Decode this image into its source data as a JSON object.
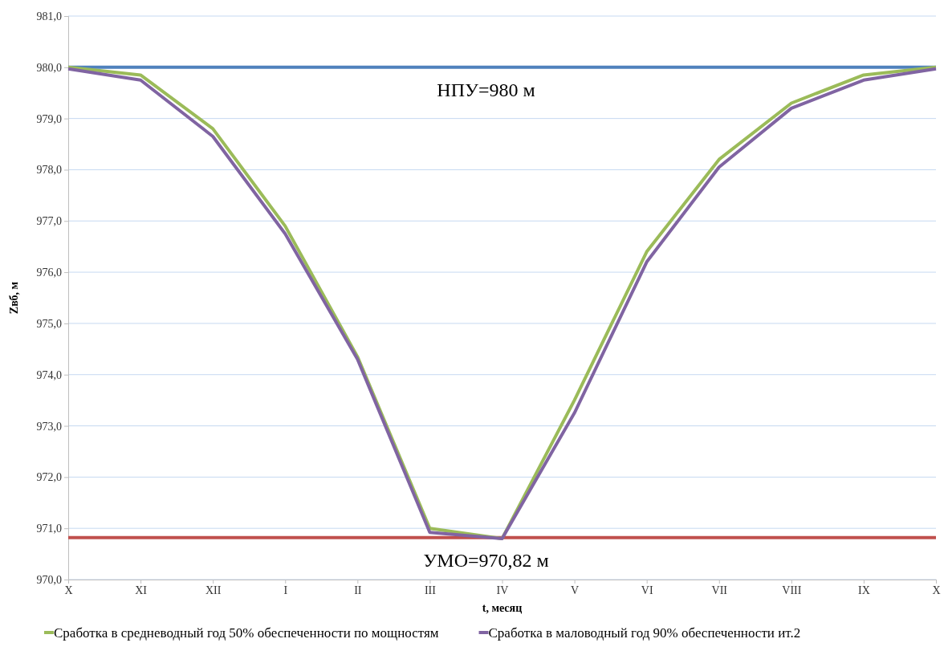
{
  "chart_data": {
    "type": "line",
    "xlabel": "t, месяц",
    "ylabel": "Zвб, м",
    "categories": [
      "X",
      "XI",
      "XII",
      "I",
      "II",
      "III",
      "IV",
      "V",
      "VI",
      "VII",
      "VIII",
      "IX",
      "X"
    ],
    "series": [
      {
        "name": "Сработка в средневодный год 50% обеспеченности по мощностям",
        "color": "#9bbb59",
        "values": [
          980.0,
          979.85,
          978.8,
          976.9,
          974.35,
          971.0,
          970.8,
          973.5,
          976.4,
          978.2,
          979.3,
          979.85,
          980.0
        ]
      },
      {
        "name": "Сработка в маловодный год 90% обеспеченности ит.2",
        "color": "#8064a2",
        "values": [
          979.97,
          979.75,
          978.65,
          976.75,
          974.3,
          970.92,
          970.8,
          973.25,
          976.2,
          978.05,
          979.2,
          979.75,
          979.97
        ]
      }
    ],
    "ylim": [
      970,
      981
    ],
    "yticks": [
      {
        "value": 970,
        "label": "970,0"
      },
      {
        "value": 971,
        "label": "971,0"
      },
      {
        "value": 972,
        "label": "972,0"
      },
      {
        "value": 973,
        "label": "973,0"
      },
      {
        "value": 974,
        "label": "974,0"
      },
      {
        "value": 975,
        "label": "975,0"
      },
      {
        "value": 976,
        "label": "976,0"
      },
      {
        "value": 977,
        "label": "977,0"
      },
      {
        "value": 978,
        "label": "978,0"
      },
      {
        "value": 979,
        "label": "979,0"
      },
      {
        "value": 980,
        "label": "980,0"
      },
      {
        "value": 981,
        "label": "981,0"
      }
    ],
    "ref_lines": [
      {
        "axis": "y",
        "value": 980,
        "label": "НПУ=980 м",
        "color": "#4f81bd"
      },
      {
        "axis": "y",
        "value": 970.82,
        "label": "УМО=970,82 м",
        "color": "#c0504d"
      }
    ],
    "grid": "y",
    "legend": "bottom",
    "marker": "none",
    "line_style": "solid"
  }
}
